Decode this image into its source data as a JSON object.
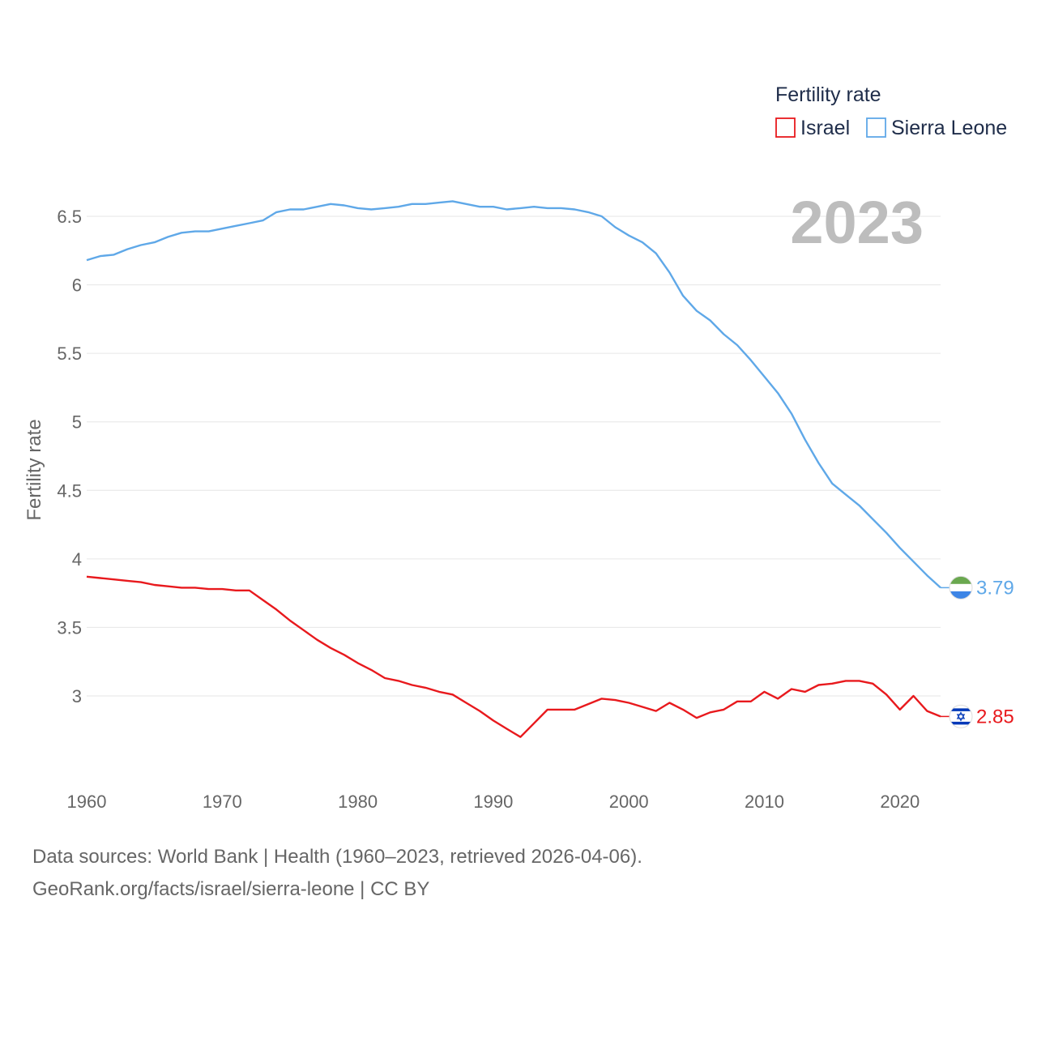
{
  "chart_data": {
    "type": "line",
    "title": "",
    "xlabel": "",
    "ylabel": "Fertility rate",
    "xlim": [
      1960,
      2023
    ],
    "ylim": [
      2.4,
      6.8
    ],
    "yticks": [
      3,
      3.5,
      4,
      4.5,
      5,
      5.5,
      6,
      6.5
    ],
    "ytick_labels": [
      "3",
      "3.5",
      "4",
      "4.5",
      "5",
      "5.5",
      "6",
      "6.5"
    ],
    "xticks": [
      1960,
      1970,
      1980,
      1990,
      2000,
      2010,
      2020
    ],
    "xtick_labels": [
      "1960",
      "1970",
      "1980",
      "1990",
      "2000",
      "2010",
      "2020"
    ],
    "grid": "horizontal",
    "year_overlay": "2023",
    "legend": {
      "title": "Fertility rate",
      "position": "top-right"
    },
    "series": [
      {
        "name": "Israel",
        "color": "#e8191d",
        "flag_icon": "israel-flag-icon",
        "end_label": "2.85",
        "x": [
          1960,
          1961,
          1962,
          1963,
          1964,
          1965,
          1966,
          1967,
          1968,
          1969,
          1970,
          1971,
          1972,
          1973,
          1974,
          1975,
          1976,
          1977,
          1978,
          1979,
          1980,
          1981,
          1982,
          1983,
          1984,
          1985,
          1986,
          1987,
          1988,
          1989,
          1990,
          1991,
          1992,
          1993,
          1994,
          1995,
          1996,
          1997,
          1998,
          1999,
          2000,
          2001,
          2002,
          2003,
          2004,
          2005,
          2006,
          2007,
          2008,
          2009,
          2010,
          2011,
          2012,
          2013,
          2014,
          2015,
          2016,
          2017,
          2018,
          2019,
          2020,
          2021,
          2022,
          2023
        ],
        "values": [
          3.87,
          3.86,
          3.85,
          3.84,
          3.83,
          3.81,
          3.8,
          3.79,
          3.79,
          3.78,
          3.78,
          3.77,
          3.77,
          3.7,
          3.63,
          3.55,
          3.48,
          3.41,
          3.35,
          3.3,
          3.24,
          3.19,
          3.13,
          3.11,
          3.08,
          3.06,
          3.03,
          3.01,
          2.95,
          2.89,
          2.82,
          2.76,
          2.7,
          2.8,
          2.9,
          2.9,
          2.9,
          2.94,
          2.98,
          2.97,
          2.95,
          2.92,
          2.89,
          2.95,
          2.9,
          2.84,
          2.88,
          2.9,
          2.96,
          2.96,
          3.03,
          2.98,
          3.05,
          3.03,
          3.08,
          3.09,
          3.11,
          3.11,
          3.09,
          3.01,
          2.9,
          3.0,
          2.89,
          2.85
        ]
      },
      {
        "name": "Sierra Leone",
        "color": "#5fa8e8",
        "flag_icon": "sierra-leone-flag-icon",
        "end_label": "3.79",
        "x": [
          1960,
          1961,
          1962,
          1963,
          1964,
          1965,
          1966,
          1967,
          1968,
          1969,
          1970,
          1971,
          1972,
          1973,
          1974,
          1975,
          1976,
          1977,
          1978,
          1979,
          1980,
          1981,
          1982,
          1983,
          1984,
          1985,
          1986,
          1987,
          1988,
          1989,
          1990,
          1991,
          1992,
          1993,
          1994,
          1995,
          1996,
          1997,
          1998,
          1999,
          2000,
          2001,
          2002,
          2003,
          2004,
          2005,
          2006,
          2007,
          2008,
          2009,
          2010,
          2011,
          2012,
          2013,
          2014,
          2015,
          2016,
          2017,
          2018,
          2019,
          2020,
          2021,
          2022,
          2023
        ],
        "values": [
          6.18,
          6.21,
          6.22,
          6.26,
          6.29,
          6.31,
          6.35,
          6.38,
          6.39,
          6.39,
          6.41,
          6.43,
          6.45,
          6.47,
          6.53,
          6.55,
          6.55,
          6.57,
          6.59,
          6.58,
          6.56,
          6.55,
          6.56,
          6.57,
          6.59,
          6.59,
          6.6,
          6.61,
          6.59,
          6.57,
          6.57,
          6.55,
          6.56,
          6.57,
          6.56,
          6.56,
          6.55,
          6.53,
          6.5,
          6.42,
          6.36,
          6.31,
          6.23,
          6.09,
          5.92,
          5.81,
          5.74,
          5.64,
          5.56,
          5.45,
          5.33,
          5.21,
          5.06,
          4.87,
          4.7,
          4.55,
          4.47,
          4.39,
          4.29,
          4.19,
          4.08,
          3.98,
          3.88,
          3.79
        ]
      }
    ]
  },
  "source": {
    "line1": "Data sources: World Bank | Health (1960–2023, retrieved 2026-04-06).",
    "line2": "GeoRank.org/facts/israel/sierra-leone | CC BY"
  }
}
